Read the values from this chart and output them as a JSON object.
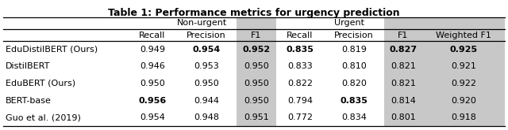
{
  "title": "Table 1: Performance metrics for urgency prediction",
  "col_headers": [
    "",
    "Recall",
    "Precision",
    "F1",
    "Recall",
    "Precision",
    "F1",
    "Weighted F1"
  ],
  "non_urgent_label": "Non-urgent",
  "urgent_label": "Urgent",
  "rows": [
    {
      "name": "EduDistilBERT (Ours)",
      "values": [
        "0.949",
        "0.954",
        "0.952",
        "0.835",
        "0.819",
        "0.827",
        "0.925"
      ],
      "bold": [
        false,
        true,
        true,
        true,
        false,
        true,
        true
      ]
    },
    {
      "name": "DistilBERT",
      "values": [
        "0.946",
        "0.953",
        "0.950",
        "0.833",
        "0.810",
        "0.821",
        "0.921"
      ],
      "bold": [
        false,
        false,
        false,
        false,
        false,
        false,
        false
      ]
    },
    {
      "name": "EduBERT (Ours)",
      "values": [
        "0.950",
        "0.950",
        "0.950",
        "0.822",
        "0.820",
        "0.821",
        "0.922"
      ],
      "bold": [
        false,
        false,
        false,
        false,
        false,
        false,
        false
      ]
    },
    {
      "name": "BERT-base",
      "values": [
        "0.956",
        "0.944",
        "0.950",
        "0.794",
        "0.835",
        "0.814",
        "0.920"
      ],
      "bold": [
        true,
        false,
        false,
        false,
        true,
        false,
        false
      ]
    },
    {
      "name": "Guo et al. (2019)",
      "values": [
        "0.954",
        "0.948",
        "0.951",
        "0.772",
        "0.834",
        "0.801",
        "0.918"
      ],
      "bold": [
        false,
        false,
        false,
        false,
        false,
        false,
        false
      ]
    }
  ],
  "shaded_cols_idx": [
    3,
    6,
    7
  ],
  "shaded_color": "#c8c8c8",
  "bg_color": "#ffffff",
  "title_fontsize": 9.0,
  "header_fontsize": 8.0,
  "cell_fontsize": 8.0,
  "figsize": [
    6.4,
    1.65
  ],
  "dpi": 100
}
